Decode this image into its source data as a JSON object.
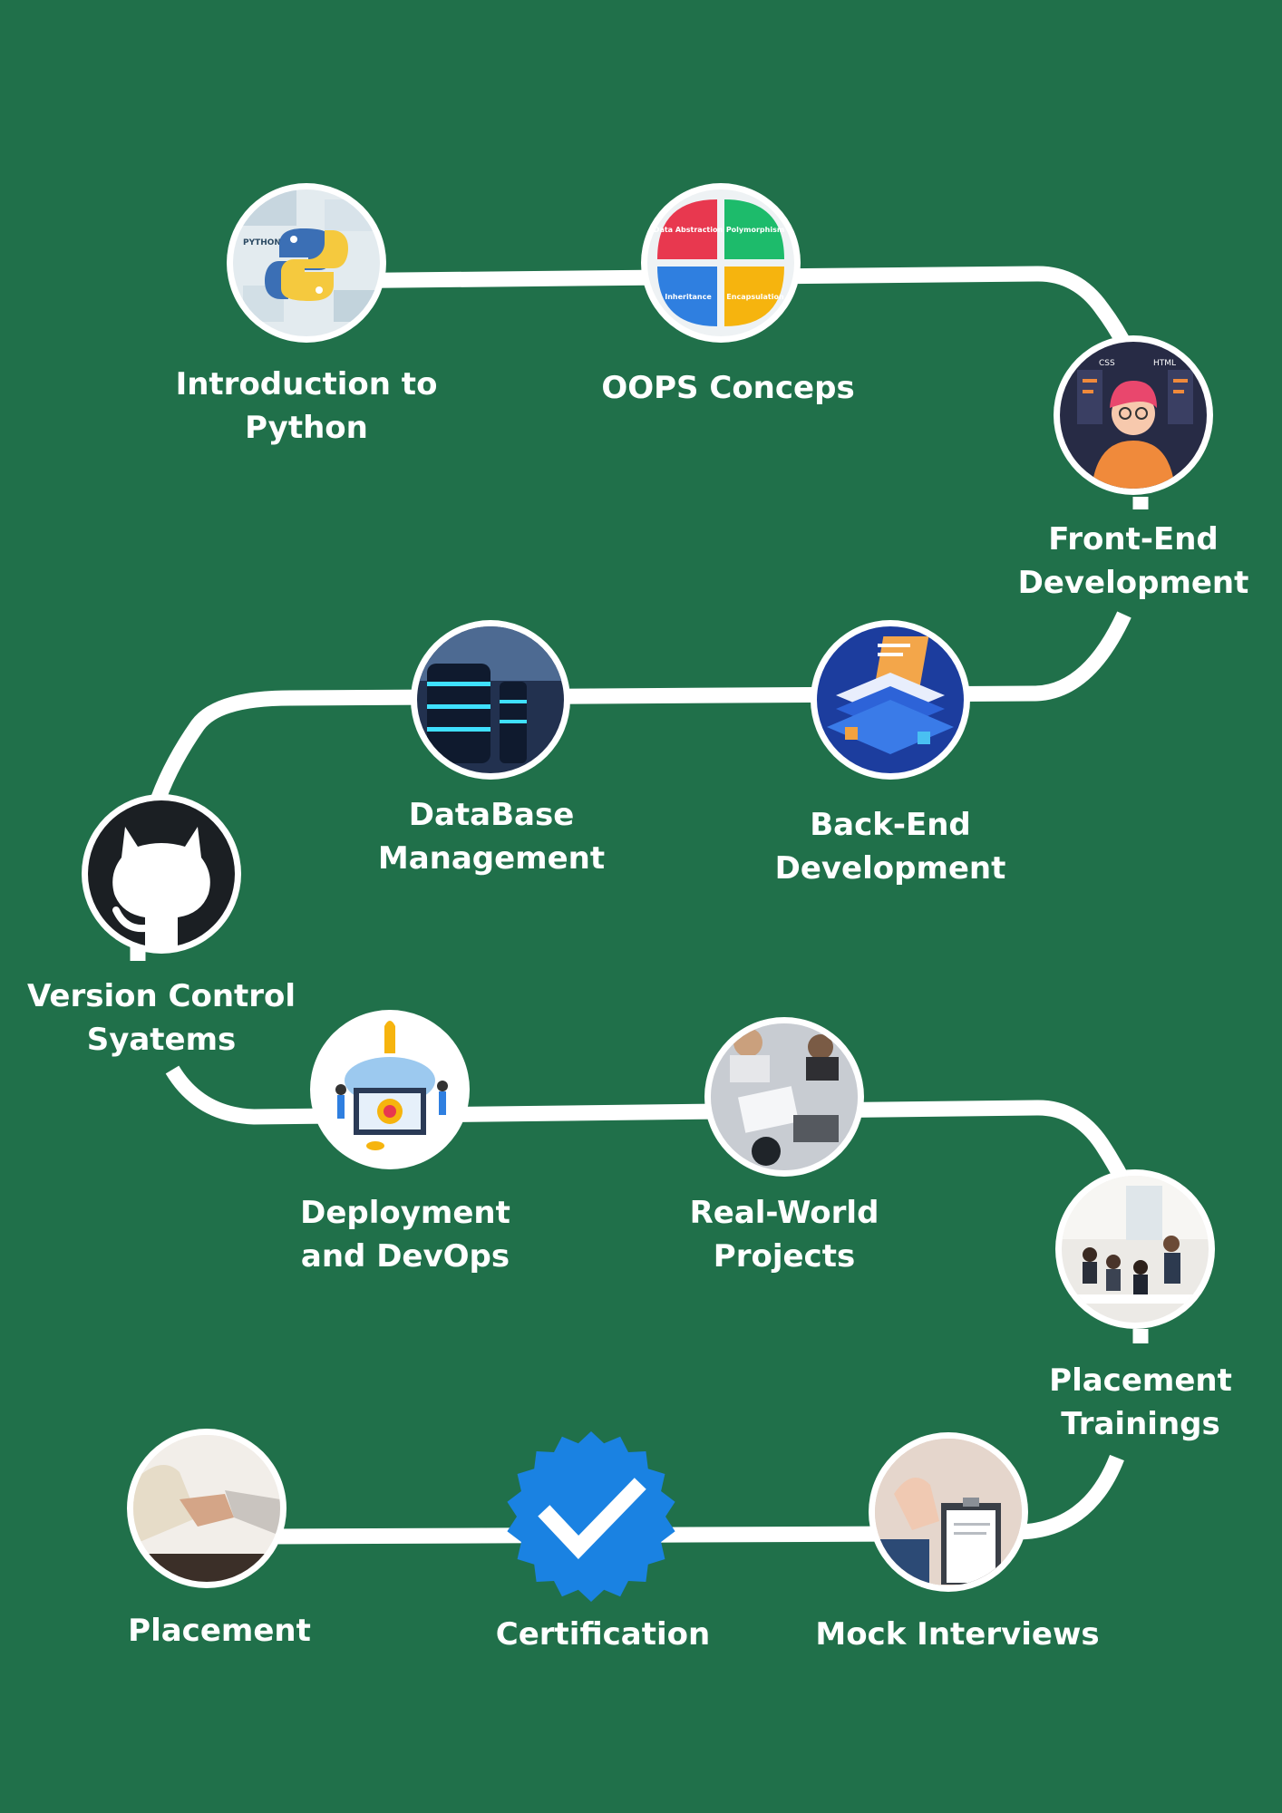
{
  "title": "",
  "steps": [
    {
      "id": "intro-python",
      "label_lines": [
        "Introduction to",
        "Python"
      ],
      "icon": "python-logo-icon"
    },
    {
      "id": "oops",
      "label_lines": [
        "OOPS Conceps"
      ],
      "icon": "oops-pillars-icon",
      "quadrants": [
        "Data Abstraction",
        "Polymorphism",
        "Inheritance",
        "Encapsulation"
      ]
    },
    {
      "id": "front-end",
      "label_lines": [
        "Front-End",
        "Development"
      ],
      "icon": "developer-avatar-icon"
    },
    {
      "id": "back-end",
      "label_lines": [
        "Back-End",
        "Development"
      ],
      "icon": "server-platform-icon"
    },
    {
      "id": "database",
      "label_lines": [
        "DataBase",
        "Management"
      ],
      "icon": "database-servers-icon"
    },
    {
      "id": "version-control",
      "label_lines": [
        "Version Control",
        "Syatems"
      ],
      "icon": "github-octocat-icon"
    },
    {
      "id": "deployment",
      "label_lines": [
        "Deployment",
        "and DevOps"
      ],
      "icon": "rocket-launch-icon"
    },
    {
      "id": "projects",
      "label_lines": [
        "Real-World",
        "Projects"
      ],
      "icon": "team-desk-icon"
    },
    {
      "id": "placement-training",
      "label_lines": [
        "Placement",
        "Trainings"
      ],
      "icon": "classroom-icon"
    },
    {
      "id": "mock-interviews",
      "label_lines": [
        "Mock Interviews"
      ],
      "icon": "clipboard-interview-icon"
    },
    {
      "id": "certification",
      "label_lines": [
        "Certification"
      ],
      "icon": "verified-badge-icon"
    },
    {
      "id": "placement",
      "label_lines": [
        "Placement"
      ],
      "icon": "handshake-icon"
    }
  ],
  "colors": {
    "background": "#20704a",
    "path": "#ffffff",
    "badge": "#1a82e2",
    "oops_quadrants": [
      "#e8384f",
      "#1dbb6b",
      "#2f7fe0",
      "#f6b40e"
    ]
  },
  "text": {
    "python_word": "PYTHON",
    "css": "CSS",
    "html": "HTML"
  }
}
